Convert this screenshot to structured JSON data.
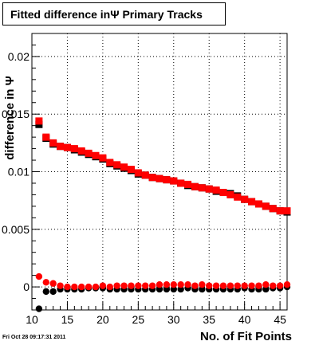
{
  "title": "Fitted difference inΨ  Primary Tracks",
  "timestamp": "Fri Oct 28 09:17:31 2011",
  "chart_data": {
    "type": "scatter",
    "title": "Fitted difference inΨ  Primary Tracks",
    "xlabel": "No. of Fit Points",
    "ylabel": "difference in Ψ",
    "xlim": [
      10,
      46
    ],
    "ylim": [
      -0.002,
      0.022
    ],
    "x_ticks": [
      "10",
      "15",
      "20",
      "25",
      "30",
      "35",
      "40",
      "45"
    ],
    "y_ticks": [
      "0",
      "0.005",
      "0.01",
      "0.015",
      "0.02"
    ],
    "grid": true,
    "colors": {
      "series_black": "#000000",
      "series_red": "#ff0000"
    },
    "x": [
      11,
      12,
      13,
      14,
      15,
      16,
      17,
      18,
      19,
      20,
      21,
      22,
      23,
      24,
      25,
      26,
      27,
      28,
      29,
      30,
      31,
      32,
      33,
      34,
      35,
      36,
      37,
      38,
      39,
      40,
      41,
      42,
      43,
      44,
      45,
      46
    ],
    "series": [
      {
        "marker": "square",
        "color": "#000000",
        "values": [
          0.0141,
          0.0129,
          0.0124,
          0.0122,
          0.0121,
          0.0119,
          0.0117,
          0.0115,
          0.0113,
          0.0111,
          0.0107,
          0.0105,
          0.0103,
          0.0101,
          0.0098,
          0.0097,
          0.0095,
          0.0094,
          0.0093,
          0.0092,
          0.009,
          0.0088,
          0.0087,
          0.0086,
          0.0085,
          0.0083,
          0.0082,
          0.0081,
          0.0079,
          0.0076,
          0.0074,
          0.0072,
          0.007,
          0.0068,
          0.0066,
          0.0065
        ]
      },
      {
        "marker": "square",
        "color": "#ff0000",
        "values": [
          0.0144,
          0.013,
          0.0125,
          0.0122,
          0.0121,
          0.012,
          0.0118,
          0.0116,
          0.0114,
          0.0112,
          0.0108,
          0.0106,
          0.0104,
          0.0102,
          0.0099,
          0.0097,
          0.0095,
          0.0094,
          0.0093,
          0.0092,
          0.009,
          0.0089,
          0.0087,
          0.0086,
          0.0085,
          0.0084,
          0.0082,
          0.008,
          0.0078,
          0.0076,
          0.0074,
          0.0072,
          0.007,
          0.0068,
          0.0066,
          0.0066
        ]
      },
      {
        "marker": "circle",
        "color": "#000000",
        "values": [
          -0.0019,
          -0.0004,
          -0.0004,
          -0.0002,
          -0.0002,
          -0.0002,
          -0.0002,
          -0.0001,
          -0.0001,
          -0.0001,
          -0.0002,
          -0.0002,
          -0.0002,
          -0.0002,
          -0.0002,
          -0.0002,
          -0.0002,
          -0.0002,
          -0.0002,
          -0.0002,
          -0.0002,
          -0.0001,
          -0.0002,
          -0.0002,
          -0.0002,
          -0.0002,
          -0.0002,
          -0.0002,
          -0.0002,
          -0.0001,
          -0.0002,
          -0.0002,
          -0.0002,
          -0.0001,
          -0.0001,
          0.0
        ]
      },
      {
        "marker": "circle",
        "color": "#ff0000",
        "values": [
          0.0009,
          0.0004,
          0.0003,
          0.0001,
          0.0,
          0.0,
          0.0,
          0.0,
          0.0,
          0.0001,
          0.0,
          0.0001,
          0.0001,
          0.0001,
          0.0001,
          0.0001,
          0.0001,
          0.0002,
          0.0002,
          0.0002,
          0.0002,
          0.0002,
          0.0001,
          0.0002,
          0.0001,
          0.0001,
          0.0001,
          0.0001,
          0.0001,
          0.0001,
          0.0001,
          0.0001,
          0.0002,
          0.0001,
          0.0001,
          0.0002
        ]
      }
    ]
  }
}
